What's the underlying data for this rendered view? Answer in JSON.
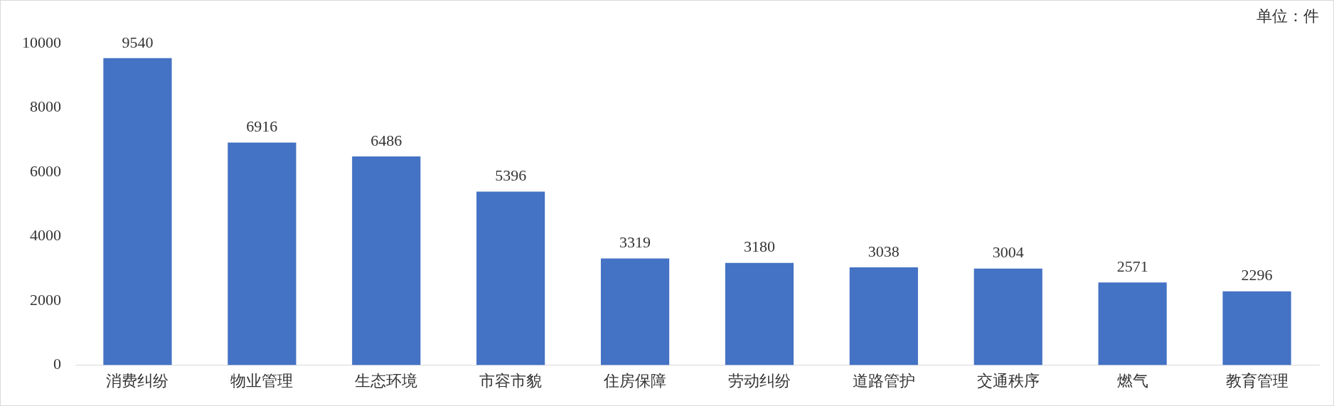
{
  "chart_data": {
    "type": "bar",
    "categories": [
      "消费纠纷",
      "物业管理",
      "生态环境",
      "市容市貌",
      "住房保障",
      "劳动纠纷",
      "道路管护",
      "交通秩序",
      "燃气",
      "教育管理"
    ],
    "values": [
      9540,
      6916,
      6486,
      5396,
      3319,
      3180,
      3038,
      3004,
      2571,
      2296
    ],
    "color": "#4472c4",
    "ylim": [
      0,
      10000
    ],
    "yticks": [
      0,
      2000,
      4000,
      6000,
      8000,
      10000
    ],
    "grid": false,
    "data_labels": true,
    "annotations": [
      "单位：件"
    ]
  }
}
